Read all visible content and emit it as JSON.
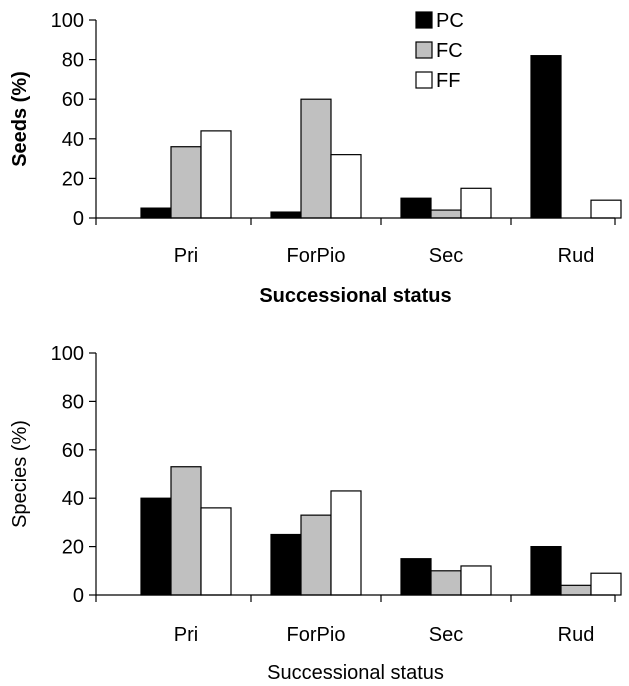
{
  "colors": {
    "PC": "#000000",
    "FC": "#c0c0c0",
    "FF": "#ffffff"
  },
  "chart_data": [
    {
      "type": "bar",
      "categories": [
        "Pri",
        "ForPio",
        "Sec",
        "Rud"
      ],
      "series": [
        {
          "name": "PC",
          "values": [
            5,
            3,
            10,
            82
          ]
        },
        {
          "name": "FC",
          "values": [
            36,
            60,
            4,
            0
          ]
        },
        {
          "name": "FF",
          "values": [
            44,
            32,
            15,
            9
          ]
        }
      ],
      "ylim": [
        0,
        100
      ],
      "yticks": [
        "0",
        "20",
        "40",
        "60",
        "80",
        "100"
      ],
      "ylabel": "Seeds  (%)",
      "xlabel": "Successional status",
      "legend": "top-right",
      "grid": false,
      "bold_titles": true
    },
    {
      "type": "bar",
      "categories": [
        "Pri",
        "ForPio",
        "Sec",
        "Rud"
      ],
      "series": [
        {
          "name": "PC",
          "values": [
            40,
            25,
            15,
            20
          ]
        },
        {
          "name": "FC",
          "values": [
            53,
            33,
            10,
            4
          ]
        },
        {
          "name": "FF",
          "values": [
            36,
            43,
            12,
            9
          ]
        }
      ],
      "ylim": [
        0,
        100
      ],
      "yticks": [
        "0",
        "20",
        "40",
        "60",
        "80",
        "100"
      ],
      "ylabel": "Species  (%)",
      "xlabel": "Successional status",
      "grid": false,
      "bold_titles": false
    }
  ]
}
